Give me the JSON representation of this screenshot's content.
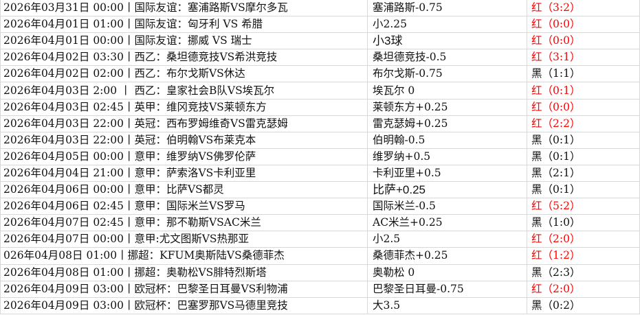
{
  "colors": {
    "red": "#ff0000",
    "black": "#111111"
  },
  "rows": [
    {
      "match": "2026年03月31日 00:00丨国际友谊：塞浦路斯VS摩尔多瓦",
      "pick": "塞浦路斯-0.75",
      "result": "红（3:2）",
      "outcome": "red"
    },
    {
      "match": "2026年04月01日 01:00丨国际友谊：匈牙利 VS 希腊",
      "pick": "小2.25",
      "result": "红（0:0）",
      "outcome": "red"
    },
    {
      "match": "2026年04月01日 00:00丨国际友谊：挪威 VS 瑞士",
      "pick": "小3球",
      "result": "红（0:0）",
      "outcome": "red"
    },
    {
      "match": "2026年04月02日 03:30丨西乙：桑坦德竞技VS希洪竞技",
      "pick": "桑坦德竞技-0.5",
      "result": "红（3:1）",
      "outcome": "red"
    },
    {
      "match": "2026年04月02日 02:00丨西乙：布尔戈斯VS休达",
      "pick": "布尔戈斯-0.75",
      "result": "黑（1:1）",
      "outcome": "black"
    },
    {
      "match": "2026年04月03日 2:00 丨 西乙：皇家社会B队VS埃瓦尔",
      "pick": "埃瓦尔 0",
      "result": "红（0:1）",
      "outcome": "red"
    },
    {
      "match": "2026年04月03日 02:45丨英甲：维冈竞技VS莱顿东方",
      "pick": "莱顿东方+0.25",
      "result": "红（0:0）",
      "outcome": "red"
    },
    {
      "match": "2026年04月03日 22:00丨英冠：西布罗姆维奇VS雷克瑟姆",
      "pick": "雷克瑟姆+0.25",
      "result": "红（2:2）",
      "outcome": "red"
    },
    {
      "match": "2026年04月03日 22:00丨英冠：伯明翰VS布莱克本",
      "pick": "伯明翰-0.5",
      "result": "黑（0:1）",
      "outcome": "black"
    },
    {
      "match": "2026年04月05日 00:00丨意甲：维罗纳VS佛罗伦萨",
      "pick": "维罗纳+0.5",
      "result": "黑（0:1）",
      "outcome": "black"
    },
    {
      "match": "2026年04月04日 21:00丨意甲：萨索洛VS卡利亚里",
      "pick": "卡利亚里+0.5",
      "result": "黑（2:1）",
      "outcome": "black"
    },
    {
      "match": "2026年04月06日 00:00丨意甲：比萨VS都灵",
      "pick": "比萨+0.25",
      "result": "黑（0:1）",
      "outcome": "black"
    },
    {
      "match": "2026年04月06日 02:45丨意甲：国际米兰VS罗马",
      "pick": "国际米兰-0.5",
      "result": "红（5:2）",
      "outcome": "red"
    },
    {
      "match": "2026年04月07日 02:45丨意甲：那不勒斯VSAC米兰",
      "pick": "AC米兰+0.25",
      "result": "黑（1:0）",
      "outcome": "black"
    },
    {
      "match": "2026年04月07日 00:00丨意甲:尤文图斯VS热那亚",
      "pick": "小2.5",
      "result": "红（2:0）",
      "outcome": "red"
    },
    {
      "match": "026年04月08日 01:00丨挪超：KFUM奥斯陆VS桑德菲杰",
      "pick": "桑德菲杰+0.25",
      "result": "红（1:2）",
      "outcome": "red"
    },
    {
      "match": "2026年04月08日 01:00丨挪超：奥勒松VS腓特烈斯塔",
      "pick": "奥勒松 0",
      "result": "黑（2:3）",
      "outcome": "black"
    },
    {
      "match": "2026年04月09日 03:00丨欧冠杯：巴黎圣日耳曼VS利物浦",
      "pick": "巴黎圣日耳曼-0.75",
      "result": "红（2:0）",
      "outcome": "red"
    },
    {
      "match": "2026年04月09日 03:00丨欧冠杯：巴塞罗那VS马德里竞技",
      "pick": "大3.5",
      "result": "黑（0:2）",
      "outcome": "black"
    }
  ]
}
